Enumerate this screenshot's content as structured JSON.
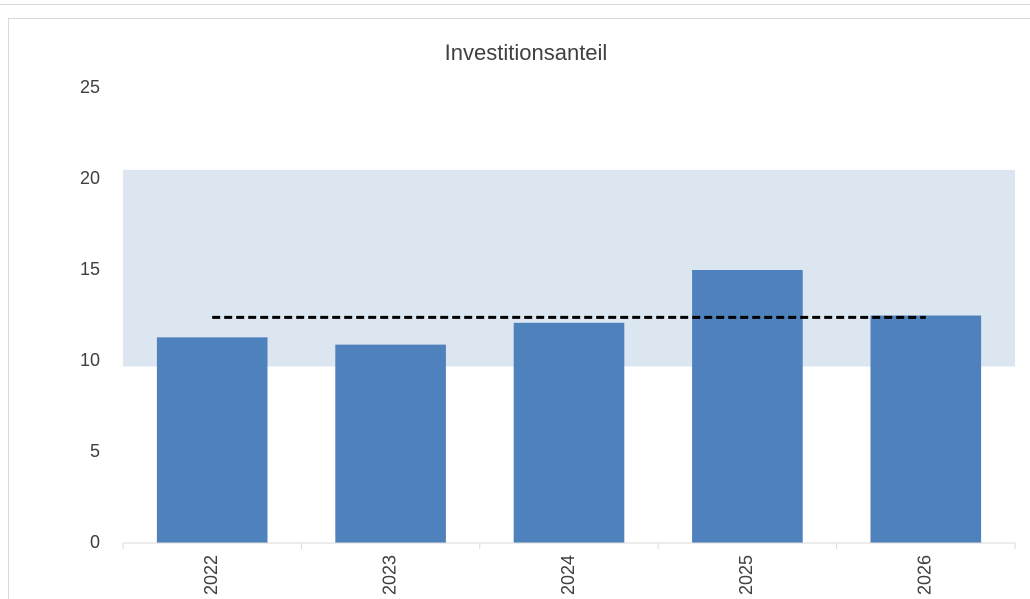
{
  "chart_data": {
    "type": "bar",
    "title": "Investitionsanteil",
    "categories": [
      "2022",
      "2023",
      "2024",
      "2025",
      "2026"
    ],
    "values": [
      11.3,
      10.9,
      12.1,
      15.0,
      12.5
    ],
    "color": "#4f81bd",
    "average": 12.4,
    "average_color": "#000000",
    "band": [
      9.7,
      20.5
    ],
    "band_color": "#dce6f1",
    "ylim": [
      0,
      25
    ],
    "yticks": [
      0,
      5,
      10,
      15,
      20,
      25
    ],
    "grid": false
  }
}
